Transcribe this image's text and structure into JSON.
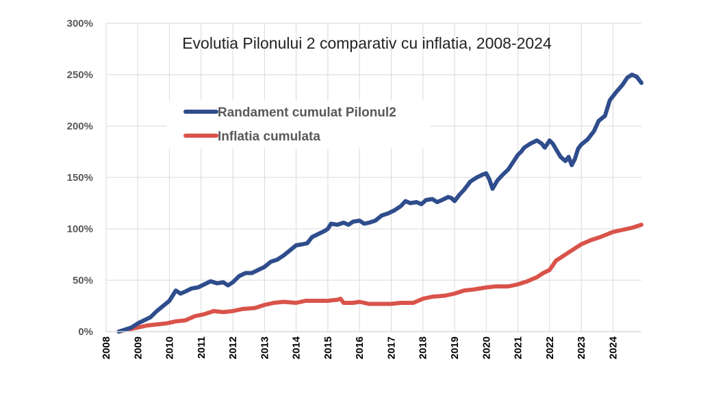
{
  "chart_data": {
    "type": "line",
    "title": "Evolutia Pilonului 2 comparativ cu inflatia, 2008-2024",
    "xlabel": "",
    "ylabel": "",
    "xlim": [
      2008,
      2024.9
    ],
    "ylim": [
      0,
      300
    ],
    "x_ticks": [
      "2008",
      "2009",
      "2010",
      "2011",
      "2012",
      "2013",
      "2014",
      "2015",
      "2016",
      "2017",
      "2018",
      "2019",
      "2020",
      "2021",
      "2022",
      "2023",
      "2024"
    ],
    "y_ticks": [
      "0%",
      "50%",
      "100%",
      "150%",
      "200%",
      "250%",
      "300%"
    ],
    "grid": true,
    "legend_position": "upper-left",
    "series": [
      {
        "name": "Randament cumulat Pilonul2",
        "color": "#2f4d8c",
        "points": [
          [
            2008.4,
            0
          ],
          [
            2008.6,
            2
          ],
          [
            2008.8,
            4
          ],
          [
            2009.0,
            8
          ],
          [
            2009.2,
            11
          ],
          [
            2009.4,
            14
          ],
          [
            2009.6,
            20
          ],
          [
            2009.8,
            25
          ],
          [
            2010.0,
            30
          ],
          [
            2010.1,
            35
          ],
          [
            2010.2,
            40
          ],
          [
            2010.35,
            37
          ],
          [
            2010.5,
            39
          ],
          [
            2010.7,
            42
          ],
          [
            2010.9,
            43
          ],
          [
            2011.1,
            46
          ],
          [
            2011.3,
            49
          ],
          [
            2011.5,
            47
          ],
          [
            2011.7,
            48
          ],
          [
            2011.85,
            45
          ],
          [
            2012.0,
            48
          ],
          [
            2012.2,
            54
          ],
          [
            2012.4,
            57
          ],
          [
            2012.6,
            57
          ],
          [
            2012.8,
            60
          ],
          [
            2013.0,
            63
          ],
          [
            2013.2,
            68
          ],
          [
            2013.4,
            70
          ],
          [
            2013.6,
            74
          ],
          [
            2013.8,
            79
          ],
          [
            2014.0,
            84
          ],
          [
            2014.2,
            85
          ],
          [
            2014.35,
            86
          ],
          [
            2014.5,
            92
          ],
          [
            2014.7,
            95
          ],
          [
            2014.9,
            98
          ],
          [
            2015.0,
            100
          ],
          [
            2015.1,
            105
          ],
          [
            2015.3,
            104
          ],
          [
            2015.5,
            106
          ],
          [
            2015.65,
            104
          ],
          [
            2015.8,
            107
          ],
          [
            2016.0,
            108
          ],
          [
            2016.15,
            105
          ],
          [
            2016.3,
            106
          ],
          [
            2016.5,
            108
          ],
          [
            2016.7,
            113
          ],
          [
            2016.9,
            115
          ],
          [
            2017.1,
            118
          ],
          [
            2017.3,
            122
          ],
          [
            2017.45,
            127
          ],
          [
            2017.6,
            125
          ],
          [
            2017.8,
            126
          ],
          [
            2017.95,
            124
          ],
          [
            2018.1,
            128
          ],
          [
            2018.3,
            129
          ],
          [
            2018.45,
            126
          ],
          [
            2018.6,
            128
          ],
          [
            2018.8,
            131
          ],
          [
            2018.9,
            130
          ],
          [
            2019.0,
            127
          ],
          [
            2019.15,
            133
          ],
          [
            2019.3,
            138
          ],
          [
            2019.5,
            146
          ],
          [
            2019.7,
            150
          ],
          [
            2019.9,
            153
          ],
          [
            2020.0,
            154
          ],
          [
            2020.1,
            148
          ],
          [
            2020.2,
            139
          ],
          [
            2020.35,
            147
          ],
          [
            2020.5,
            152
          ],
          [
            2020.7,
            158
          ],
          [
            2020.85,
            165
          ],
          [
            2021.0,
            172
          ],
          [
            2021.1,
            175
          ],
          [
            2021.2,
            179
          ],
          [
            2021.4,
            183
          ],
          [
            2021.6,
            186
          ],
          [
            2021.75,
            183
          ],
          [
            2021.85,
            179
          ],
          [
            2022.0,
            186
          ],
          [
            2022.1,
            183
          ],
          [
            2022.25,
            175
          ],
          [
            2022.35,
            170
          ],
          [
            2022.5,
            166
          ],
          [
            2022.6,
            170
          ],
          [
            2022.7,
            162
          ],
          [
            2022.8,
            168
          ],
          [
            2022.9,
            178
          ],
          [
            2023.0,
            182
          ],
          [
            2023.2,
            187
          ],
          [
            2023.4,
            195
          ],
          [
            2023.55,
            205
          ],
          [
            2023.75,
            210
          ],
          [
            2023.9,
            225
          ],
          [
            2024.1,
            233
          ],
          [
            2024.3,
            240
          ],
          [
            2024.45,
            247
          ],
          [
            2024.6,
            250
          ],
          [
            2024.75,
            248
          ],
          [
            2024.9,
            242
          ]
        ]
      },
      {
        "name": "Inflatia cumulata",
        "color": "#d9534a",
        "points": [
          [
            2008.4,
            0
          ],
          [
            2008.7,
            2
          ],
          [
            2009.0,
            4
          ],
          [
            2009.3,
            6
          ],
          [
            2009.6,
            7
          ],
          [
            2009.9,
            8
          ],
          [
            2010.2,
            10
          ],
          [
            2010.5,
            11
          ],
          [
            2010.8,
            15
          ],
          [
            2011.1,
            17
          ],
          [
            2011.4,
            20
          ],
          [
            2011.7,
            19
          ],
          [
            2012.0,
            20
          ],
          [
            2012.3,
            22
          ],
          [
            2012.7,
            23
          ],
          [
            2013.0,
            26
          ],
          [
            2013.3,
            28
          ],
          [
            2013.6,
            29
          ],
          [
            2014.0,
            28
          ],
          [
            2014.3,
            30
          ],
          [
            2014.6,
            30
          ],
          [
            2015.0,
            30
          ],
          [
            2015.3,
            31
          ],
          [
            2015.4,
            32
          ],
          [
            2015.5,
            28
          ],
          [
            2015.8,
            28
          ],
          [
            2016.0,
            29
          ],
          [
            2016.3,
            27
          ],
          [
            2016.7,
            27
          ],
          [
            2017.0,
            27
          ],
          [
            2017.3,
            28
          ],
          [
            2017.7,
            28
          ],
          [
            2018.0,
            32
          ],
          [
            2018.3,
            34
          ],
          [
            2018.7,
            35
          ],
          [
            2019.0,
            37
          ],
          [
            2019.3,
            40
          ],
          [
            2019.6,
            41
          ],
          [
            2020.0,
            43
          ],
          [
            2020.3,
            44
          ],
          [
            2020.7,
            44
          ],
          [
            2021.0,
            46
          ],
          [
            2021.3,
            49
          ],
          [
            2021.6,
            53
          ],
          [
            2021.8,
            57
          ],
          [
            2022.0,
            60
          ],
          [
            2022.2,
            69
          ],
          [
            2022.5,
            75
          ],
          [
            2022.8,
            81
          ],
          [
            2023.0,
            85
          ],
          [
            2023.3,
            89
          ],
          [
            2023.6,
            92
          ],
          [
            2024.0,
            97
          ],
          [
            2024.3,
            99
          ],
          [
            2024.6,
            101
          ],
          [
            2024.9,
            104
          ]
        ]
      }
    ]
  }
}
